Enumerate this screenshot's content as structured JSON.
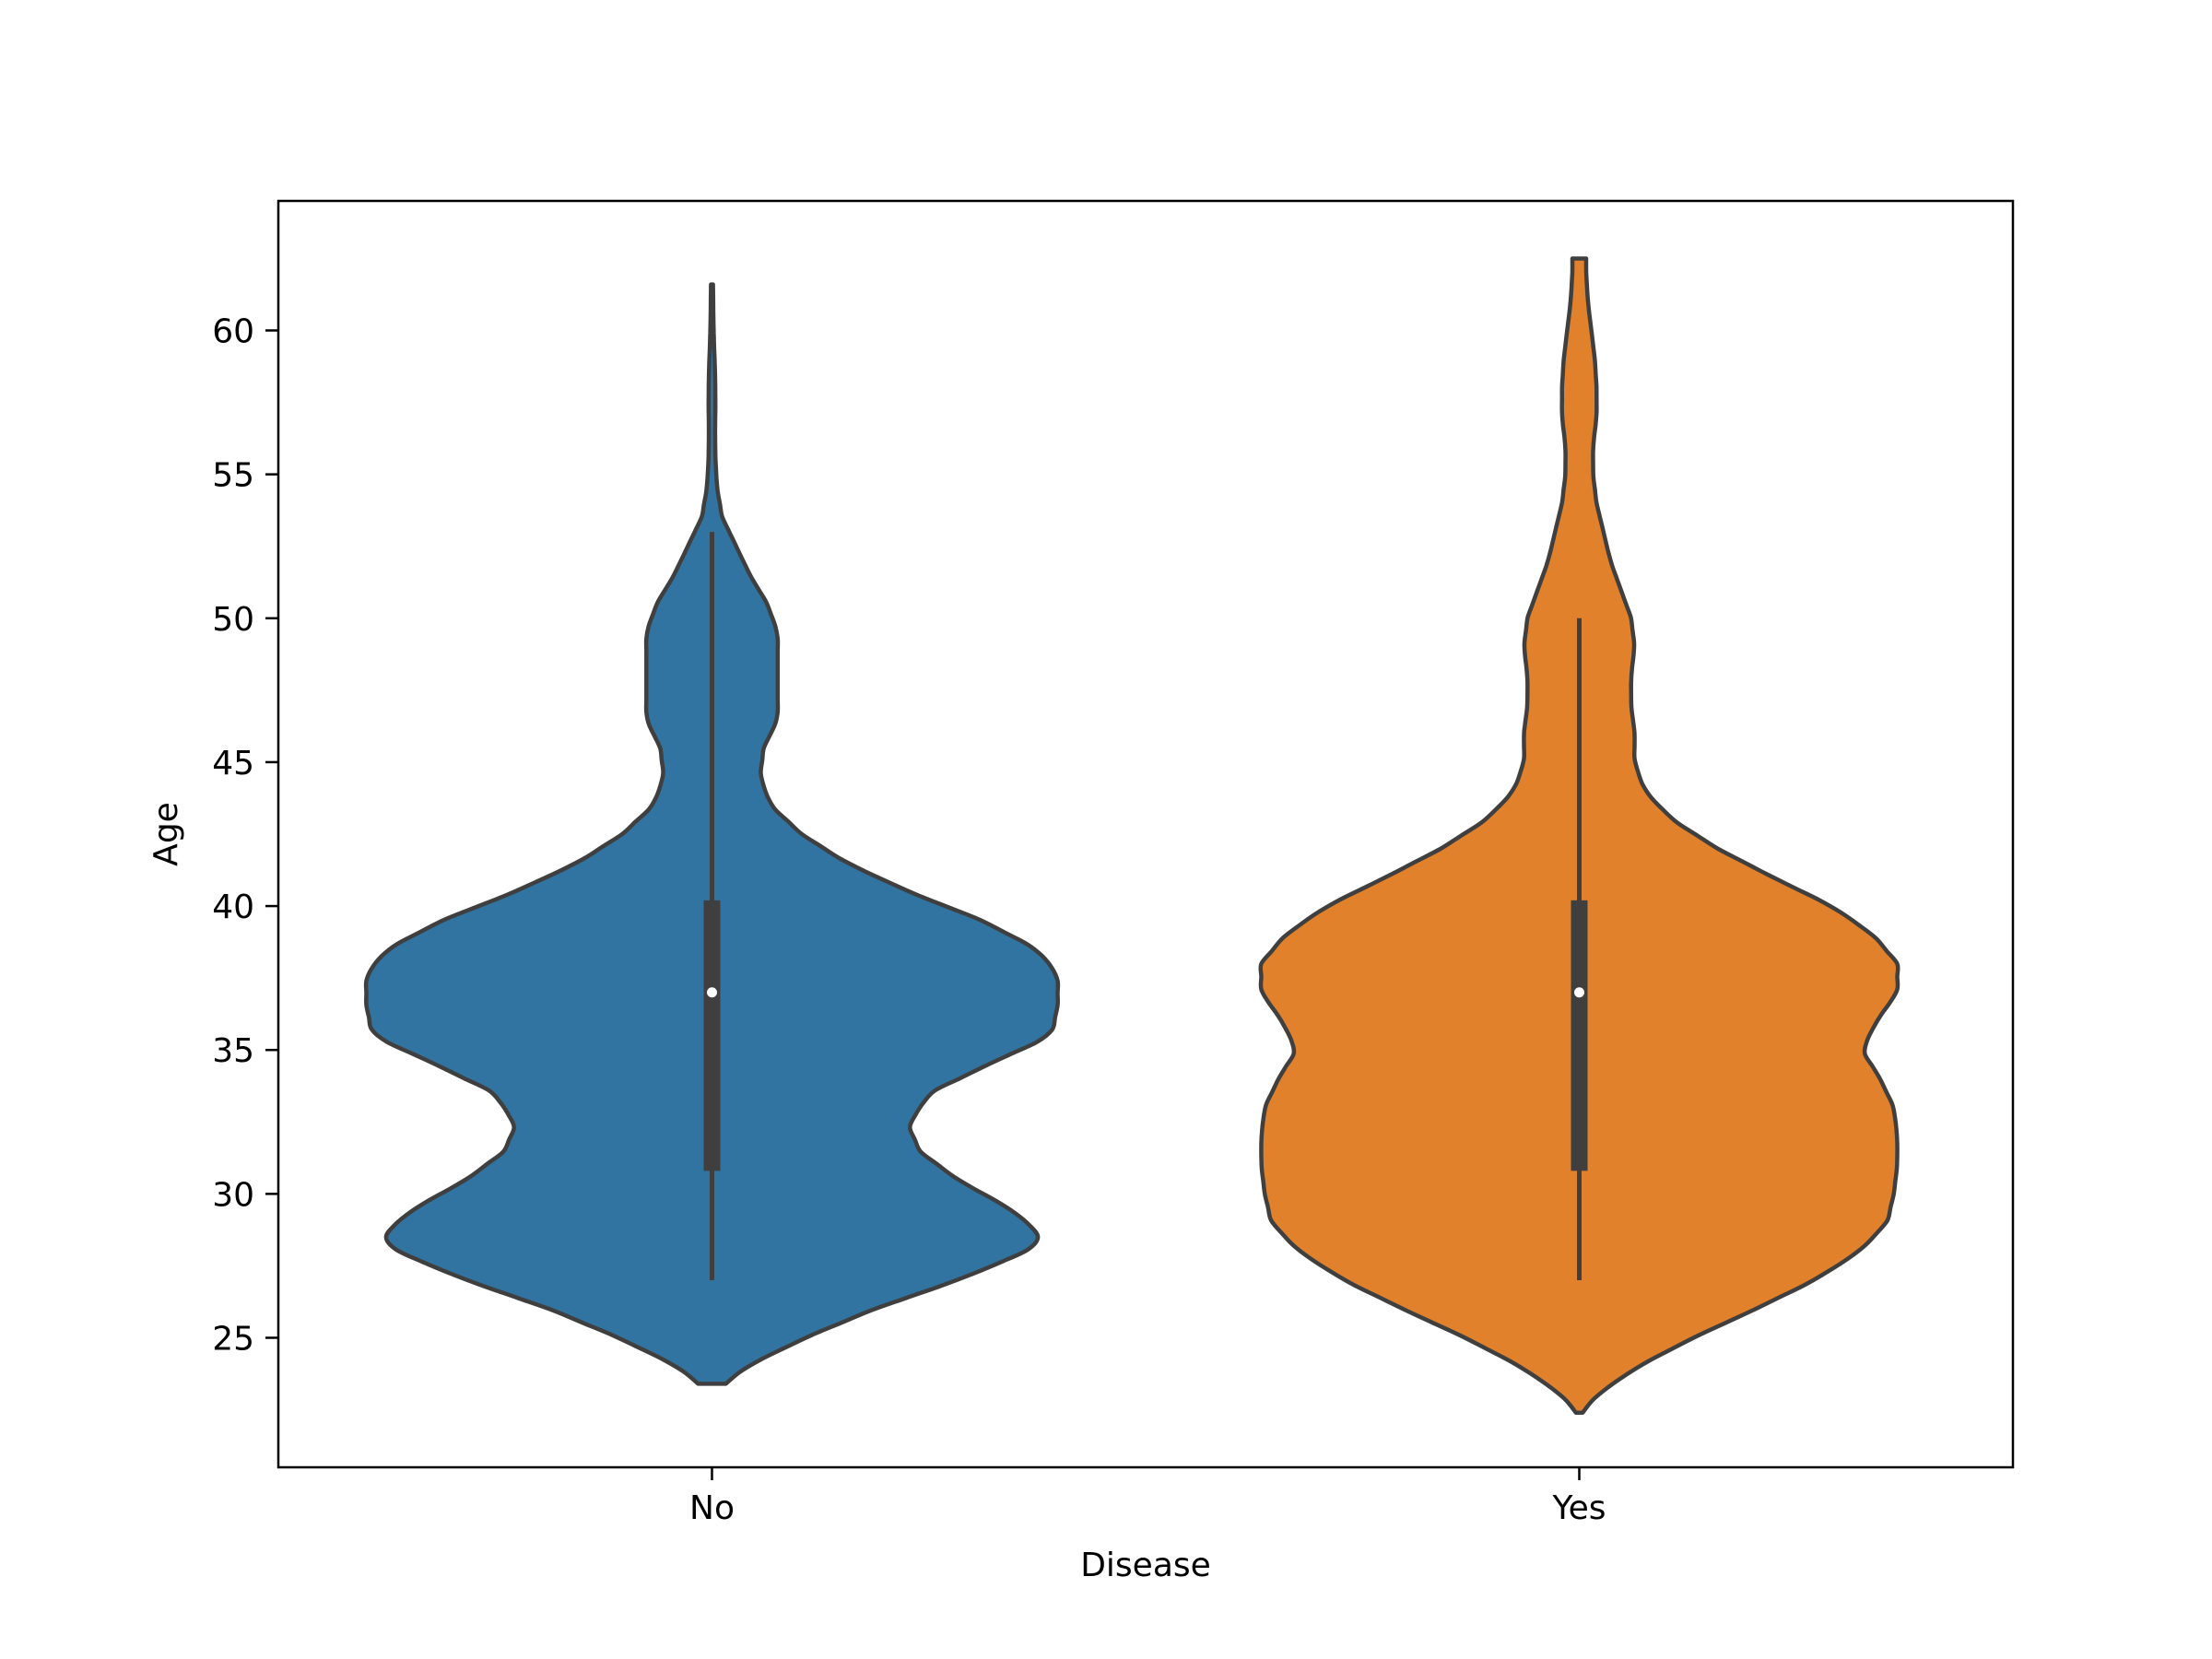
{
  "chart_data": {
    "type": "violin",
    "title": "",
    "xlabel": "Disease",
    "ylabel": "Age",
    "categories": [
      "No",
      "Yes"
    ],
    "ylim": [
      20.5,
      64.5
    ],
    "yticks": [
      25,
      30,
      35,
      40,
      45,
      50,
      55,
      60
    ],
    "grid": false,
    "legend": "none",
    "colors": {
      "No": "#3274a1",
      "Yes": "#e1812c",
      "outline": "#3f3f3f",
      "median": "#ffffff"
    },
    "violins": [
      {
        "category": "No",
        "color": "#3274a1",
        "quartiles": {
          "q1": 30.8,
          "median": 37.0,
          "q3": 40.2
        },
        "whiskers": [
          27.0,
          53.0
        ],
        "range": [
          23.4,
          61.6
        ],
        "density_profile": [
          [
            23.4,
            0.04
          ],
          [
            24.0,
            0.1
          ],
          [
            25.0,
            0.27
          ],
          [
            26.0,
            0.47
          ],
          [
            27.0,
            0.71
          ],
          [
            28.0,
            0.91
          ],
          [
            28.6,
            0.95
          ],
          [
            29.5,
            0.86
          ],
          [
            30.5,
            0.71
          ],
          [
            31.5,
            0.6
          ],
          [
            32.4,
            0.57
          ],
          [
            33.5,
            0.63
          ],
          [
            34.5,
            0.8
          ],
          [
            35.5,
            0.98
          ],
          [
            36.5,
            1.0
          ],
          [
            37.6,
            1.0
          ],
          [
            38.5,
            0.94
          ],
          [
            39.5,
            0.78
          ],
          [
            40.5,
            0.57
          ],
          [
            41.5,
            0.39
          ],
          [
            42.5,
            0.26
          ],
          [
            43.5,
            0.17
          ],
          [
            44.5,
            0.14
          ],
          [
            45.5,
            0.15
          ],
          [
            46.5,
            0.19
          ],
          [
            47.5,
            0.19
          ],
          [
            48.5,
            0.19
          ],
          [
            49.5,
            0.19
          ],
          [
            50.5,
            0.16
          ],
          [
            51.5,
            0.11
          ],
          [
            52.5,
            0.07
          ],
          [
            53.5,
            0.03
          ],
          [
            54.5,
            0.015
          ],
          [
            55.5,
            0.01
          ],
          [
            56.5,
            0.009
          ],
          [
            57.5,
            0.01
          ],
          [
            58.5,
            0.009
          ],
          [
            59.5,
            0.006
          ],
          [
            60.5,
            0.004
          ],
          [
            61.6,
            0.003
          ]
        ]
      },
      {
        "category": "Yes",
        "color": "#e1812c",
        "quartiles": {
          "q1": 30.8,
          "median": 37.0,
          "q3": 40.2
        },
        "whiskers": [
          27.0,
          50.0
        ],
        "range": [
          22.4,
          62.5
        ],
        "density_profile": [
          [
            22.4,
            0.01
          ],
          [
            23.0,
            0.05
          ],
          [
            24.0,
            0.17
          ],
          [
            25.0,
            0.33
          ],
          [
            26.0,
            0.51
          ],
          [
            27.0,
            0.68
          ],
          [
            28.0,
            0.81
          ],
          [
            29.0,
            0.89
          ],
          [
            30.0,
            0.91
          ],
          [
            31.0,
            0.92
          ],
          [
            32.0,
            0.92
          ],
          [
            33.0,
            0.91
          ],
          [
            34.0,
            0.87
          ],
          [
            35.0,
            0.82
          ],
          [
            36.0,
            0.86
          ],
          [
            37.0,
            0.92
          ],
          [
            38.0,
            0.92
          ],
          [
            39.0,
            0.85
          ],
          [
            40.0,
            0.73
          ],
          [
            41.0,
            0.56
          ],
          [
            42.0,
            0.4
          ],
          [
            43.0,
            0.27
          ],
          [
            44.0,
            0.19
          ],
          [
            45.0,
            0.16
          ],
          [
            46.0,
            0.16
          ],
          [
            47.0,
            0.15
          ],
          [
            48.0,
            0.15
          ],
          [
            49.0,
            0.16
          ],
          [
            50.0,
            0.15
          ],
          [
            51.0,
            0.12
          ],
          [
            52.0,
            0.09
          ],
          [
            53.0,
            0.07
          ],
          [
            54.0,
            0.05
          ],
          [
            55.0,
            0.04
          ],
          [
            56.0,
            0.04
          ],
          [
            57.0,
            0.05
          ],
          [
            58.0,
            0.05
          ],
          [
            59.0,
            0.045
          ],
          [
            60.0,
            0.035
          ],
          [
            61.0,
            0.025
          ],
          [
            62.0,
            0.02
          ],
          [
            62.5,
            0.02
          ]
        ]
      }
    ]
  }
}
